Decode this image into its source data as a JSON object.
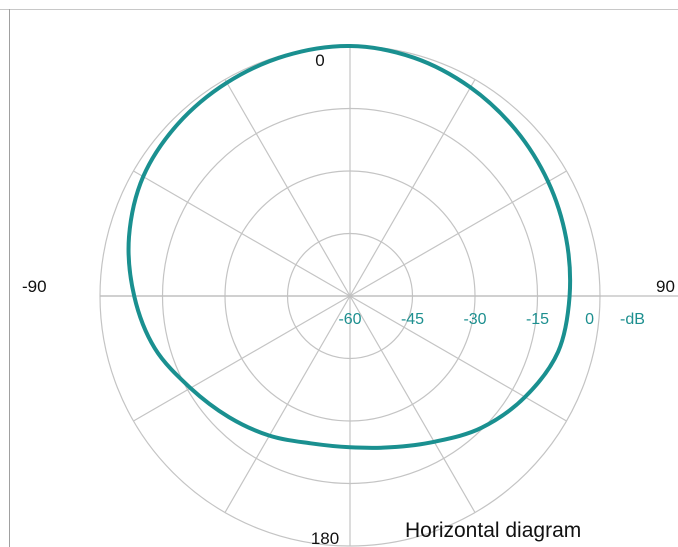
{
  "chart_data": {
    "type": "polar",
    "caption": "Horizontal diagram",
    "angle_labels": [
      {
        "angle": 0,
        "text": "0"
      },
      {
        "angle": -90,
        "text": "-90"
      },
      {
        "angle": 90,
        "text": "90"
      },
      {
        "angle": 180,
        "text": "180"
      }
    ],
    "radial_axis": {
      "unit": "-dB",
      "min": -60,
      "max": 0,
      "ticks": [
        -60,
        -45,
        -30,
        -15,
        0
      ],
      "tick_labels": [
        "-60",
        "-45",
        "-30",
        "-15",
        "0"
      ]
    },
    "spoke_step_deg": 30,
    "grid": true,
    "series": [
      {
        "color": "#1a9090",
        "angles": [
          0,
          15,
          30,
          45,
          60,
          75,
          90,
          105,
          120,
          135,
          150,
          165,
          180,
          195,
          210,
          225,
          240,
          255,
          270,
          285,
          300,
          315,
          330,
          345
        ],
        "values": [
          0,
          -0.8,
          -2.2,
          -3.7,
          -5.1,
          -6.3,
          -7.3,
          -8.3,
          -11.5,
          -15.3,
          -19.6,
          -22.4,
          -23.7,
          -23.4,
          -21.3,
          -18.9,
          -15.8,
          -11.5,
          -8.2,
          -5.1,
          -2.7,
          -1.6,
          -0.9,
          -0.3
        ]
      }
    ]
  }
}
